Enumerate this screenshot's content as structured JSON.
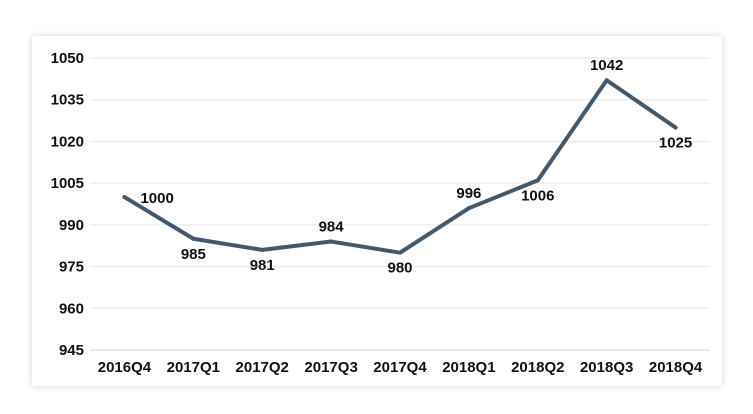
{
  "chart_data": {
    "type": "line",
    "categories": [
      "2016Q4",
      "2017Q1",
      "2017Q2",
      "2017Q3",
      "2017Q4",
      "2018Q1",
      "2018Q2",
      "2018Q3",
      "2018Q4"
    ],
    "series": [
      {
        "values": [
          1000,
          985,
          981,
          984,
          980,
          996,
          1006,
          1042,
          1025
        ]
      }
    ],
    "y_ticks": [
      945,
      960,
      975,
      990,
      1005,
      1020,
      1035,
      1050
    ],
    "ylim": [
      945,
      1050
    ],
    "grid": true,
    "line_color": "#44596b",
    "grid_color": "#e6e6e6",
    "data_labels": [
      {
        "text": "1000",
        "position": "right"
      },
      {
        "text": "985",
        "position": "below"
      },
      {
        "text": "981",
        "position": "below"
      },
      {
        "text": "984",
        "position": "above"
      },
      {
        "text": "980",
        "position": "below"
      },
      {
        "text": "996",
        "position": "above"
      },
      {
        "text": "1006",
        "position": "below"
      },
      {
        "text": "1042",
        "position": "above"
      },
      {
        "text": "1025",
        "position": "below"
      }
    ]
  }
}
